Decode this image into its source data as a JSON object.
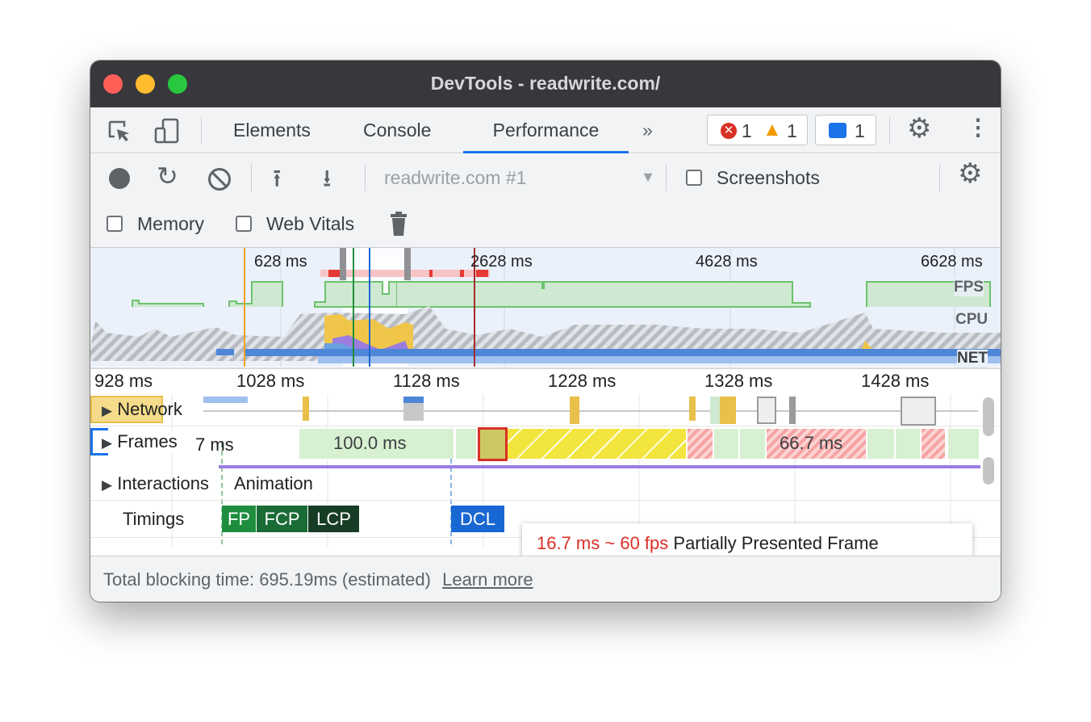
{
  "window": {
    "title": "DevTools - readwrite.com/"
  },
  "tabs": [
    {
      "label": "Elements"
    },
    {
      "label": "Console"
    },
    {
      "label": "Performance",
      "active": true
    }
  ],
  "badges": {
    "errors": "1",
    "warnings": "1",
    "messages": "1"
  },
  "toolbar": {
    "profile_select": "readwrite.com #1",
    "screenshots_label": "Screenshots",
    "memory_label": "Memory",
    "web_vitals_label": "Web Vitals",
    "screenshots_checked": false,
    "memory_checked": false,
    "web_vitals_checked": false
  },
  "overview": {
    "ticks": [
      "628 ms",
      "2628 ms",
      "4628 ms",
      "6628 ms"
    ],
    "fps_label": "FPS",
    "cpu_label": "CPU",
    "net_label": "NET"
  },
  "ruler": {
    "ticks": [
      "928 ms",
      "1028 ms",
      "1128 ms",
      "1228 ms",
      "1328 ms",
      "1428 ms"
    ]
  },
  "tracks": {
    "network": "Network",
    "frames": "Frames",
    "frames_first": "7 ms",
    "frame_long": "100.0 ms",
    "frame_dropped": "66.7 ms",
    "interactions": "Interactions",
    "animation": "Animation",
    "timings": "Timings"
  },
  "timings": [
    "FP",
    "FCP",
    "LCP",
    "DCL"
  ],
  "tooltip": {
    "fps": "16.7 ms ~ 60 fps",
    "desc": "Partially Presented Frame"
  },
  "footer": {
    "text": "Total blocking time: 695.19ms (estimated)",
    "link": "Learn more"
  },
  "colors": {
    "accent": "#1a73e8",
    "error": "#d93025",
    "fp": "#1e8e3e",
    "fcp": "#1a6b35",
    "lcp": "#173d24",
    "dcl": "#1967d2"
  }
}
